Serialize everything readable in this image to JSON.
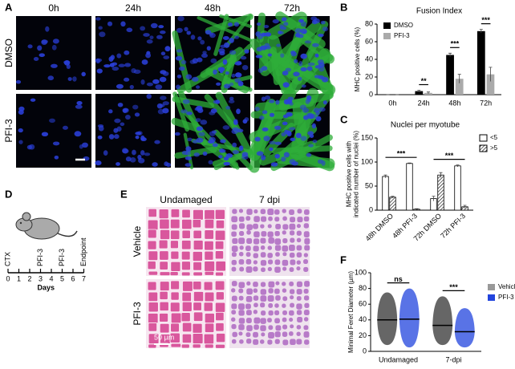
{
  "panel_labels": [
    "A",
    "B",
    "C",
    "D",
    "E",
    "F"
  ],
  "panel_a": {
    "columns": [
      "0h",
      "24h",
      "48h",
      "72h"
    ],
    "rows": [
      "DMSO",
      "PFI-3"
    ]
  },
  "panel_d": {
    "days": [
      0,
      1,
      2,
      3,
      4,
      5,
      6,
      7
    ],
    "events": [
      "CTX",
      null,
      null,
      "PFI-3",
      null,
      "PFI-3",
      null,
      "Endpoint"
    ],
    "axis_label": "Days"
  },
  "panel_e": {
    "columns": [
      "Undamaged",
      "7 dpi"
    ],
    "rows": [
      "Vehicle",
      "PFI-3"
    ],
    "scale_bar": "50 µm"
  },
  "chart_data": [
    {
      "type": "bar",
      "title": "Fusion Index",
      "ylabel": [
        "MHC positive cells (%)"
      ],
      "categories": [
        "0h",
        "24h",
        "48h",
        "72h"
      ],
      "series": [
        {
          "name": "DMSO",
          "color": "#000000",
          "values": [
            0,
            4,
            45,
            72
          ],
          "errors": [
            0,
            1,
            2,
            2
          ]
        },
        {
          "name": "PFI-3",
          "color": "#aaaaaa",
          "values": [
            0,
            2,
            18,
            23
          ],
          "errors": [
            0,
            1,
            5,
            8
          ]
        }
      ],
      "ylim": [
        0,
        80
      ],
      "yticks": [
        0,
        20,
        40,
        60,
        80
      ],
      "legend": "upper left",
      "significance": [
        {
          "from": "24h",
          "to": "24h",
          "label": "**"
        },
        {
          "from": "48h",
          "to": "48h",
          "label": "***"
        },
        {
          "from": "72h",
          "to": "72h",
          "label": "***"
        }
      ]
    },
    {
      "type": "bar",
      "title": "Nuclei per myotube",
      "ylabel": [
        "MHC positive cells with",
        "indicated number of nuclei (%)"
      ],
      "categories": [
        "48h DMSO",
        "48h PFI-3",
        "72h DMSO",
        "72h PFI-3"
      ],
      "series": [
        {
          "name": "<5",
          "color": "#ffffff",
          "values": [
            70,
            97,
            24,
            92
          ],
          "errors": [
            3,
            1,
            5,
            2
          ]
        },
        {
          "name": ">5",
          "color": "#ffffff",
          "pattern": "hatch",
          "values": [
            27,
            2,
            73,
            7
          ],
          "errors": [
            2,
            1,
            5,
            3
          ]
        }
      ],
      "ylim": [
        0,
        150
      ],
      "yticks": [
        0,
        50,
        100,
        150
      ],
      "legend": "upper right",
      "significance": [
        {
          "from": "48h DMSO",
          "to": "48h PFI-3",
          "label": "***"
        },
        {
          "from": "72h DMSO",
          "to": "72h PFI-3",
          "label": "***"
        }
      ]
    },
    {
      "type": "dotplot",
      "ylabel": [
        "Minimal Feret Diameter (µm)"
      ],
      "categories": [
        "Undamaged",
        "7-dpi"
      ],
      "series": [
        {
          "name": "Vehicle",
          "color": "#333333",
          "values": [
            40,
            33
          ],
          "ranges": [
            [
              8,
              75
            ],
            [
              8,
              70
            ]
          ]
        },
        {
          "name": "PFI-3",
          "color": "#2244dd",
          "values": [
            41,
            25
          ],
          "ranges": [
            [
              5,
              80
            ],
            [
              5,
              55
            ]
          ]
        }
      ],
      "ylim": [
        0,
        100
      ],
      "yticks": [
        0,
        20,
        40,
        60,
        80,
        100
      ],
      "legend": "right",
      "legend_colors": [
        "#999999",
        "#2244dd"
      ],
      "significance": [
        {
          "from": "Undamaged",
          "to": "Undamaged",
          "label": "ns"
        },
        {
          "from": "7-dpi",
          "to": "7-dpi",
          "label": "***"
        }
      ]
    }
  ]
}
